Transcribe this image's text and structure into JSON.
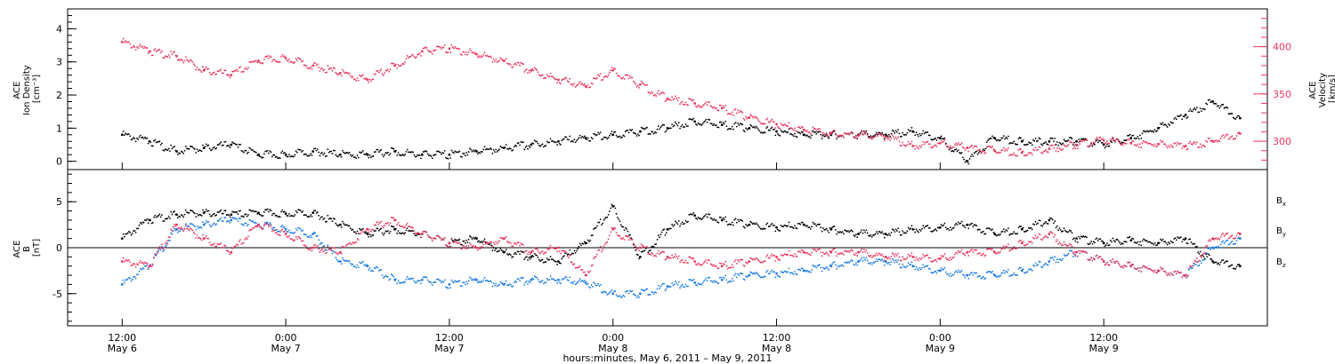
{
  "chart_data": [
    {
      "type": "scatter",
      "panel": "top",
      "ylabel_lines": [
        "ACE",
        "Ion Density",
        "[cm⁻³]"
      ],
      "y2label_lines": [
        "ACE",
        "Velocity",
        "[km/s]"
      ],
      "ylim": [
        -0.25,
        4.6
      ],
      "yticks": [
        "0",
        "1",
        "2",
        "3",
        "4"
      ],
      "y2lim": [
        270,
        440
      ],
      "y2ticks": [
        "300",
        "350",
        "400"
      ],
      "y2_color": "#e8365f",
      "series": [
        {
          "axis": "left",
          "color": "#000000",
          "x_hours": [
            0,
            2,
            4,
            6,
            8,
            10,
            12,
            14,
            16,
            18,
            20,
            22,
            24,
            26,
            28,
            30,
            32,
            34,
            36,
            38,
            40,
            42,
            44,
            46,
            48,
            50,
            52,
            54,
            56,
            58,
            60,
            62,
            64,
            66,
            68,
            70,
            72,
            74,
            76,
            78,
            80,
            82
          ],
          "values": [
            0.8,
            0.6,
            0.3,
            0.4,
            0.5,
            0.2,
            0.2,
            0.3,
            0.2,
            0.2,
            0.3,
            0.2,
            0.2,
            0.3,
            0.4,
            0.5,
            0.6,
            0.7,
            0.8,
            0.9,
            1.0,
            1.2,
            1.1,
            1.0,
            0.9,
            0.8,
            0.8,
            0.8,
            0.8,
            0.9,
            0.7,
            0.0,
            0.7,
            0.6,
            0.6,
            0.6,
            0.5,
            0.7,
            1.0,
            1.4,
            1.8,
            1.3
          ]
        },
        {
          "axis": "right",
          "color": "#e8365f",
          "x_hours": [
            0,
            2,
            4,
            6,
            8,
            10,
            12,
            14,
            16,
            18,
            20,
            22,
            24,
            26,
            28,
            30,
            32,
            34,
            36,
            38,
            40,
            42,
            44,
            46,
            48,
            50,
            52,
            54,
            56,
            58,
            60,
            62,
            64,
            66,
            68,
            70,
            72,
            74,
            76,
            78,
            80,
            82
          ],
          "values": [
            405,
            395,
            390,
            375,
            370,
            385,
            388,
            380,
            372,
            365,
            380,
            395,
            398,
            392,
            385,
            375,
            365,
            358,
            375,
            360,
            345,
            340,
            335,
            325,
            318,
            312,
            308,
            306,
            305,
            295,
            298,
            293,
            290,
            288,
            292,
            296,
            301,
            298,
            297,
            295,
            300,
            308
          ]
        }
      ]
    },
    {
      "type": "scatter",
      "panel": "bottom",
      "ylabel_lines": [
        "ACE",
        "B",
        "[nT]"
      ],
      "ylim": [
        -8.5,
        8.5
      ],
      "yticks": [
        "-5",
        "0",
        "5"
      ],
      "series": [
        {
          "name": "Bx",
          "color": "#000000",
          "x_hours": [
            0,
            2,
            4,
            6,
            8,
            10,
            12,
            14,
            16,
            18,
            20,
            22,
            24,
            26,
            28,
            30,
            32,
            34,
            36,
            38,
            40,
            42,
            44,
            46,
            48,
            50,
            52,
            54,
            56,
            58,
            60,
            62,
            64,
            66,
            68,
            70,
            72,
            74,
            76,
            78,
            80,
            82
          ],
          "values": [
            1.0,
            3.0,
            3.6,
            3.8,
            3.6,
            3.8,
            3.7,
            3.8,
            2.5,
            1.5,
            2.0,
            1.5,
            0.5,
            1.0,
            -0.5,
            -1.0,
            -1.5,
            0.5,
            4.5,
            -1.0,
            2.0,
            3.5,
            3.0,
            2.5,
            2.2,
            2.5,
            2.0,
            1.5,
            1.5,
            2.0,
            2.2,
            2.5,
            1.5,
            2.0,
            3.0,
            1.0,
            0.5,
            0.8,
            0.5,
            1.0,
            -1.5,
            -2.0
          ]
        },
        {
          "name": "By",
          "color": "#1a7be0",
          "x_hours": [
            0,
            2,
            4,
            6,
            8,
            10,
            12,
            14,
            16,
            18,
            20,
            22,
            24,
            26,
            28,
            30,
            32,
            34,
            36,
            38,
            40,
            42,
            44,
            46,
            48,
            50,
            52,
            54,
            56,
            58,
            60,
            62,
            64,
            66,
            68,
            70,
            72,
            74,
            76,
            78,
            80,
            82
          ],
          "values": [
            -4.0,
            -2.0,
            2.0,
            2.5,
            3.0,
            2.5,
            2.0,
            1.5,
            -1.5,
            -2.0,
            -3.5,
            -3.5,
            -4.0,
            -3.5,
            -4.0,
            -3.5,
            -3.5,
            -3.8,
            -5.0,
            -5.0,
            -4.2,
            -3.8,
            -3.5,
            -3.0,
            -2.8,
            -2.5,
            -2.0,
            -1.5,
            -1.5,
            -2.0,
            -2.5,
            -3.0,
            -3.0,
            -2.5,
            -1.5,
            -0.5,
            -1.5,
            -2.0,
            -2.5,
            -3.0,
            0.0,
            1.0
          ]
        },
        {
          "name": "Bz",
          "color": "#e8365f",
          "x_hours": [
            0,
            2,
            4,
            6,
            8,
            10,
            12,
            14,
            16,
            18,
            20,
            22,
            24,
            26,
            28,
            30,
            32,
            34,
            36,
            38,
            40,
            42,
            44,
            46,
            48,
            50,
            52,
            54,
            56,
            58,
            60,
            62,
            64,
            66,
            68,
            70,
            72,
            74,
            76,
            78,
            80,
            82
          ],
          "values": [
            -1.5,
            -2.0,
            2.5,
            1.0,
            -0.5,
            2.5,
            1.5,
            0.0,
            -0.5,
            2.0,
            3.0,
            1.5,
            0.5,
            0.0,
            1.0,
            -0.5,
            0.0,
            -3.0,
            2.0,
            0.0,
            -1.0,
            -1.5,
            -2.0,
            -1.5,
            -1.0,
            -0.5,
            -0.5,
            -0.5,
            -1.0,
            -1.0,
            -1.2,
            -0.5,
            -0.5,
            0.5,
            1.5,
            -0.5,
            -1.5,
            -2.0,
            -2.5,
            -3.0,
            1.0,
            1.5
          ]
        }
      ],
      "legend": [
        "B",
        "B",
        "B"
      ],
      "legend_subs": [
        "x",
        "y",
        "z"
      ]
    }
  ],
  "x_axis": {
    "xlim_hours": [
      -4,
      84
    ],
    "ticks": [
      {
        "hours": 0,
        "time": "12:00",
        "date": "May 6"
      },
      {
        "hours": 12,
        "time": "0:00",
        "date": "May 7"
      },
      {
        "hours": 24,
        "time": "12:00",
        "date": "May 7"
      },
      {
        "hours": 36,
        "time": "0:00",
        "date": "May 8"
      },
      {
        "hours": 48,
        "time": "12:00",
        "date": "May 8"
      },
      {
        "hours": 60,
        "time": "0:00",
        "date": "May 9"
      },
      {
        "hours": 72,
        "time": "12:00",
        "date": "May 9"
      }
    ],
    "xlabel": "hours:minutes, May  6, 2011 – May  9, 2011"
  }
}
